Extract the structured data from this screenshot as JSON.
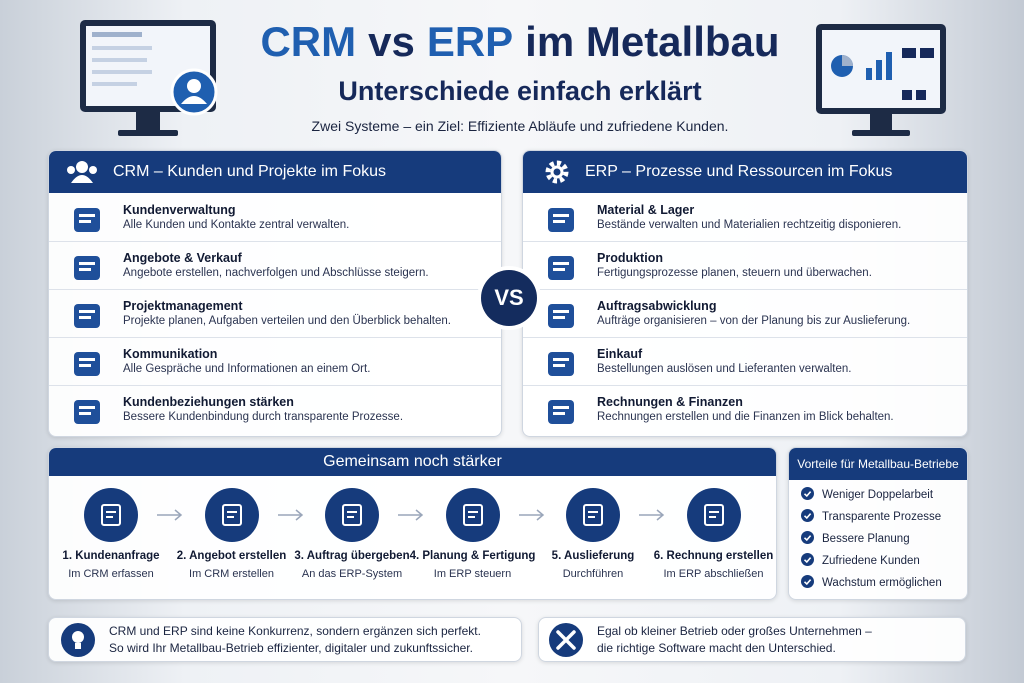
{
  "header": {
    "title": [
      "CRM",
      "vs",
      "ERP",
      "im Metallbau"
    ],
    "subtitle": "Unterschiede einfach erklärt",
    "tagline": "Zwei Systeme – ein Ziel: Effiziente Abläufe und zufriedene Kunden."
  },
  "crm": {
    "heading": "CRM – Kunden und Projekte im Fokus",
    "items": [
      {
        "title": "Kundenverwaltung",
        "text": "Alle Kunden und Kontakte zentral verwalten."
      },
      {
        "title": "Angebote & Verkauf",
        "text": "Angebote erstellen, nachverfolgen und Abschlüsse steigern."
      },
      {
        "title": "Projektmanagement",
        "text": "Projekte planen, Aufgaben verteilen und den Überblick behalten."
      },
      {
        "title": "Kommunikation",
        "text": "Alle Gespräche und Informationen an einem Ort."
      },
      {
        "title": "Kundenbeziehungen stärken",
        "text": "Bessere Kundenbindung durch transparente Prozesse."
      }
    ]
  },
  "vs": "VS",
  "erp": {
    "heading": "ERP – Prozesse und Ressourcen im Fokus",
    "items": [
      {
        "title": "Material & Lager",
        "text": "Bestände verwalten und Materialien rechtzeitig disponieren."
      },
      {
        "title": "Produktion",
        "text": "Fertigungsprozesse planen, steuern und überwachen."
      },
      {
        "title": "Auftragsabwicklung",
        "text": "Aufträge organisieren – von der Planung bis zur Auslieferung."
      },
      {
        "title": "Einkauf",
        "text": "Bestellungen auslösen und Lieferanten verwalten."
      },
      {
        "title": "Rechnungen & Finanzen",
        "text": "Rechnungen erstellen und die Finanzen im Blick behalten."
      }
    ]
  },
  "process": {
    "heading": "Gemeinsam noch stärker",
    "steps": [
      {
        "label": "1. Kundenanfrage",
        "sub": "Im CRM erfassen"
      },
      {
        "label": "2. Angebot erstellen",
        "sub": "Im CRM erstellen"
      },
      {
        "label": "3. Auftrag übergeben",
        "sub": "An das ERP-System"
      },
      {
        "label": "4. Planung & Fertigung",
        "sub": "Im ERP steuern"
      },
      {
        "label": "5. Auslieferung",
        "sub": "Durchführen"
      },
      {
        "label": "6. Rechnung erstellen",
        "sub": "Im ERP abschließen"
      }
    ]
  },
  "benefits": {
    "heading": "Vorteile für Metallbau-Betriebe",
    "items": [
      "Weniger Doppelarbeit",
      "Transparente Prozesse",
      "Bessere Planung",
      "Zufriedene Kunden",
      "Wachstum ermöglichen"
    ]
  },
  "footer": {
    "left": [
      "CRM und ERP sind keine Konkurrenz, sondern ergänzen sich perfekt.",
      "So wird Ihr Metallbau-Betrieb effizienter, digitaler und zukunftssicher."
    ],
    "right": [
      "Egal ob kleiner Betrieb oder großes Unternehmen –",
      "die richtige Software macht den Unterschied."
    ]
  }
}
